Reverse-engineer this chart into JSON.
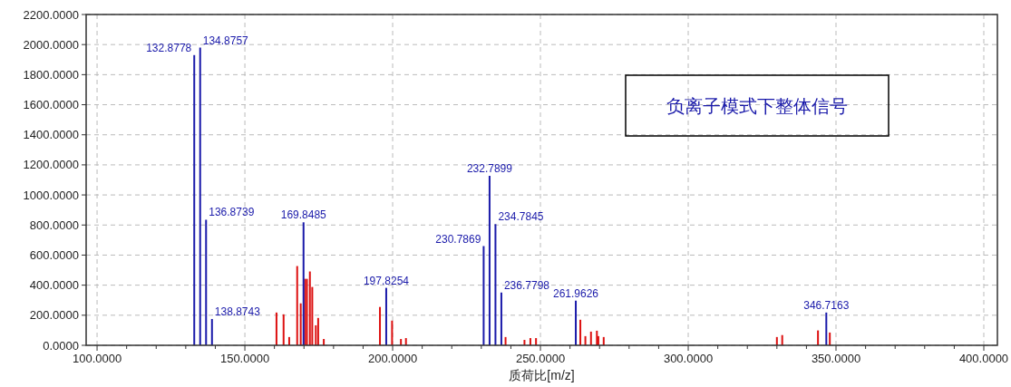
{
  "chart_data": {
    "type": "bar",
    "xlabel": "质荷比[m/z]",
    "annotations": [
      "负离子模式下整体信号",
      {
        "text": "132.8778",
        "x": 132.8778,
        "y": 1930
      },
      {
        "text": "134.8757",
        "x": 134.8757,
        "y": 1980
      },
      {
        "text": "136.8739",
        "x": 136.8739,
        "y": 835
      },
      {
        "text": "138.8743",
        "x": 138.8743,
        "y": 175
      },
      {
        "text": "169.8485",
        "x": 169.8485,
        "y": 818
      },
      {
        "text": "197.8254",
        "x": 197.8254,
        "y": 382
      },
      {
        "text": "230.7869",
        "x": 230.7869,
        "y": 660
      },
      {
        "text": "232.7899",
        "x": 232.7899,
        "y": 1127
      },
      {
        "text": "234.7845",
        "x": 234.7845,
        "y": 806
      },
      {
        "text": "236.7798",
        "x": 236.7798,
        "y": 351
      },
      {
        "text": "261.9626",
        "x": 261.9626,
        "y": 297
      },
      {
        "text": "346.7163",
        "x": 346.7163,
        "y": 218
      }
    ],
    "xlim": [
      96.3,
      404.6
    ],
    "ylim": [
      0,
      2200
    ],
    "xticks": [
      {
        "value": 100,
        "label": "100.0000"
      },
      {
        "value": 110,
        "label": null
      },
      {
        "value": 120,
        "label": null
      },
      {
        "value": 130,
        "label": null
      },
      {
        "value": 140,
        "label": null
      },
      {
        "value": 150,
        "label": "150.0000"
      },
      {
        "value": 160,
        "label": null
      },
      {
        "value": 170,
        "label": null
      },
      {
        "value": 180,
        "label": null
      },
      {
        "value": 190,
        "label": null
      },
      {
        "value": 200,
        "label": "200.0000"
      },
      {
        "value": 210,
        "label": null
      },
      {
        "value": 220,
        "label": null
      },
      {
        "value": 230,
        "label": null
      },
      {
        "value": 240,
        "label": null
      },
      {
        "value": 250,
        "label": "250.0000"
      },
      {
        "value": 260,
        "label": null
      },
      {
        "value": 270,
        "label": null
      },
      {
        "value": 280,
        "label": null
      },
      {
        "value": 290,
        "label": null
      },
      {
        "value": 300,
        "label": "300.0000"
      },
      {
        "value": 310,
        "label": null
      },
      {
        "value": 320,
        "label": null
      },
      {
        "value": 330,
        "label": null
      },
      {
        "value": 340,
        "label": null
      },
      {
        "value": 350,
        "label": "350.0000"
      },
      {
        "value": 360,
        "label": null
      },
      {
        "value": 370,
        "label": null
      },
      {
        "value": 380,
        "label": null
      },
      {
        "value": 390,
        "label": null
      },
      {
        "value": 400,
        "label": "400.0000"
      }
    ],
    "yticks": [
      {
        "value": 0,
        "label": "0.0000"
      },
      {
        "value": 200,
        "label": "200.0000"
      },
      {
        "value": 400,
        "label": "400.0000"
      },
      {
        "value": 600,
        "label": "600.0000"
      },
      {
        "value": 800,
        "label": "800.0000"
      },
      {
        "value": 1000,
        "label": "1000.0000"
      },
      {
        "value": 1200,
        "label": "1200.0000"
      },
      {
        "value": 1400,
        "label": "1400.0000"
      },
      {
        "value": 1600,
        "label": "1600.0000"
      },
      {
        "value": 1800,
        "label": "1800.0000"
      },
      {
        "value": 2000,
        "label": "2000.0000"
      },
      {
        "value": 2200,
        "label": "2200.0000"
      }
    ],
    "grid": true,
    "series": [
      {
        "color": "#dd1111",
        "x": [
          160.7,
          163.1,
          165.0,
          167.7,
          168.9,
          170.4,
          171.0,
          172.0,
          172.8,
          174.0,
          174.8,
          176.7,
          195.7,
          199.8,
          202.8,
          204.5,
          238.2,
          244.6,
          246.6,
          248.5,
          263.5,
          265.2,
          267.1,
          269.1,
          269.6,
          271.4,
          330.0,
          331.8,
          343.9,
          347.9
        ],
        "values": [
          218,
          206,
          55,
          527,
          279,
          442,
          442,
          491,
          388,
          133,
          182,
          42,
          255,
          164,
          42,
          48,
          55,
          36,
          48,
          48,
          170,
          61,
          91,
          97,
          61,
          55,
          55,
          68,
          99,
          85
        ]
      },
      {
        "color": "#1a1aaa",
        "x": [
          132.8778,
          134.8757,
          136.8739,
          138.8743,
          169.8485,
          197.8254,
          230.7869,
          232.7899,
          234.7845,
          236.7798,
          261.9626,
          346.7163
        ],
        "values": [
          1930,
          1980,
          835,
          175,
          818,
          382,
          660,
          1127,
          806,
          351,
          297,
          218
        ]
      }
    ]
  }
}
